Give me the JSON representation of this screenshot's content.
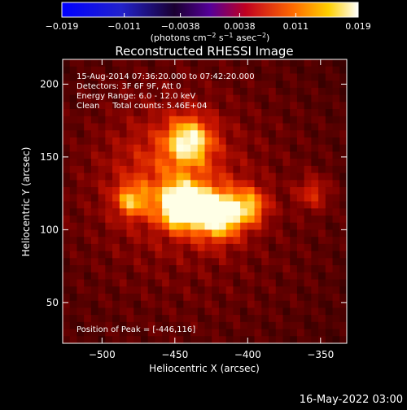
{
  "chart_data": {
    "type": "heatmap",
    "title": "Reconstructed RHESSI Image",
    "xlabel": "Heliocentric X (arcsec)",
    "ylabel": "Heliocentric Y (arcsec)",
    "xlim": [
      -527,
      -332
    ],
    "ylim": [
      22,
      217
    ],
    "xticks": [
      -500,
      -450,
      -400,
      -350
    ],
    "xtick_labels": [
      "−500",
      "−450",
      "−400",
      "−350"
    ],
    "yticks": [
      50,
      100,
      150,
      200
    ],
    "ytick_labels": [
      "50",
      "100",
      "150",
      "200"
    ],
    "annotations": [
      "15-Aug-2014 07:36:20.000 to 07:42:20.000",
      "Detectors: 3F 6F 9F, Att 0",
      "Energy Range: 6.0 - 12.0 keV",
      "Clean     Total counts: 5.46E+04"
    ],
    "peak_label": "Position of Peak = [-446,116]",
    "peak": [
      -446,
      116
    ],
    "sources": [
      {
        "x": -446,
        "y": 116,
        "sigma": 10,
        "amp": 1.0
      },
      {
        "x": -420,
        "y": 110,
        "sigma": 12,
        "amp": 0.9
      },
      {
        "x": -440,
        "y": 162,
        "sigma": 11,
        "amp": 0.75
      },
      {
        "x": -398,
        "y": 116,
        "sigma": 9,
        "amp": 0.6
      },
      {
        "x": -480,
        "y": 120,
        "sigma": 8,
        "amp": 0.55
      },
      {
        "x": -355,
        "y": 125,
        "sigma": 8,
        "amp": 0.45
      },
      {
        "x": -455,
        "y": 140,
        "sigma": 30,
        "amp": 0.35
      }
    ],
    "colorbar": {
      "ticks": [
        -0.019,
        -0.011,
        -0.0038,
        0.0038,
        0.011,
        0.019
      ],
      "tick_labels": [
        "−0.019",
        "−0.011",
        "−0.0038",
        "0.0038",
        "0.011",
        "0.019"
      ],
      "label": "(photons cm",
      "label_exp1": "−2",
      "label_mid": " s",
      "label_exp2": "−1",
      "label_end": " asec",
      "label_exp3": "−2",
      "label_close": ")",
      "range": [
        -0.019,
        0.019
      ]
    }
  },
  "footer": {
    "timestamp": "16-May-2022 03:00"
  }
}
